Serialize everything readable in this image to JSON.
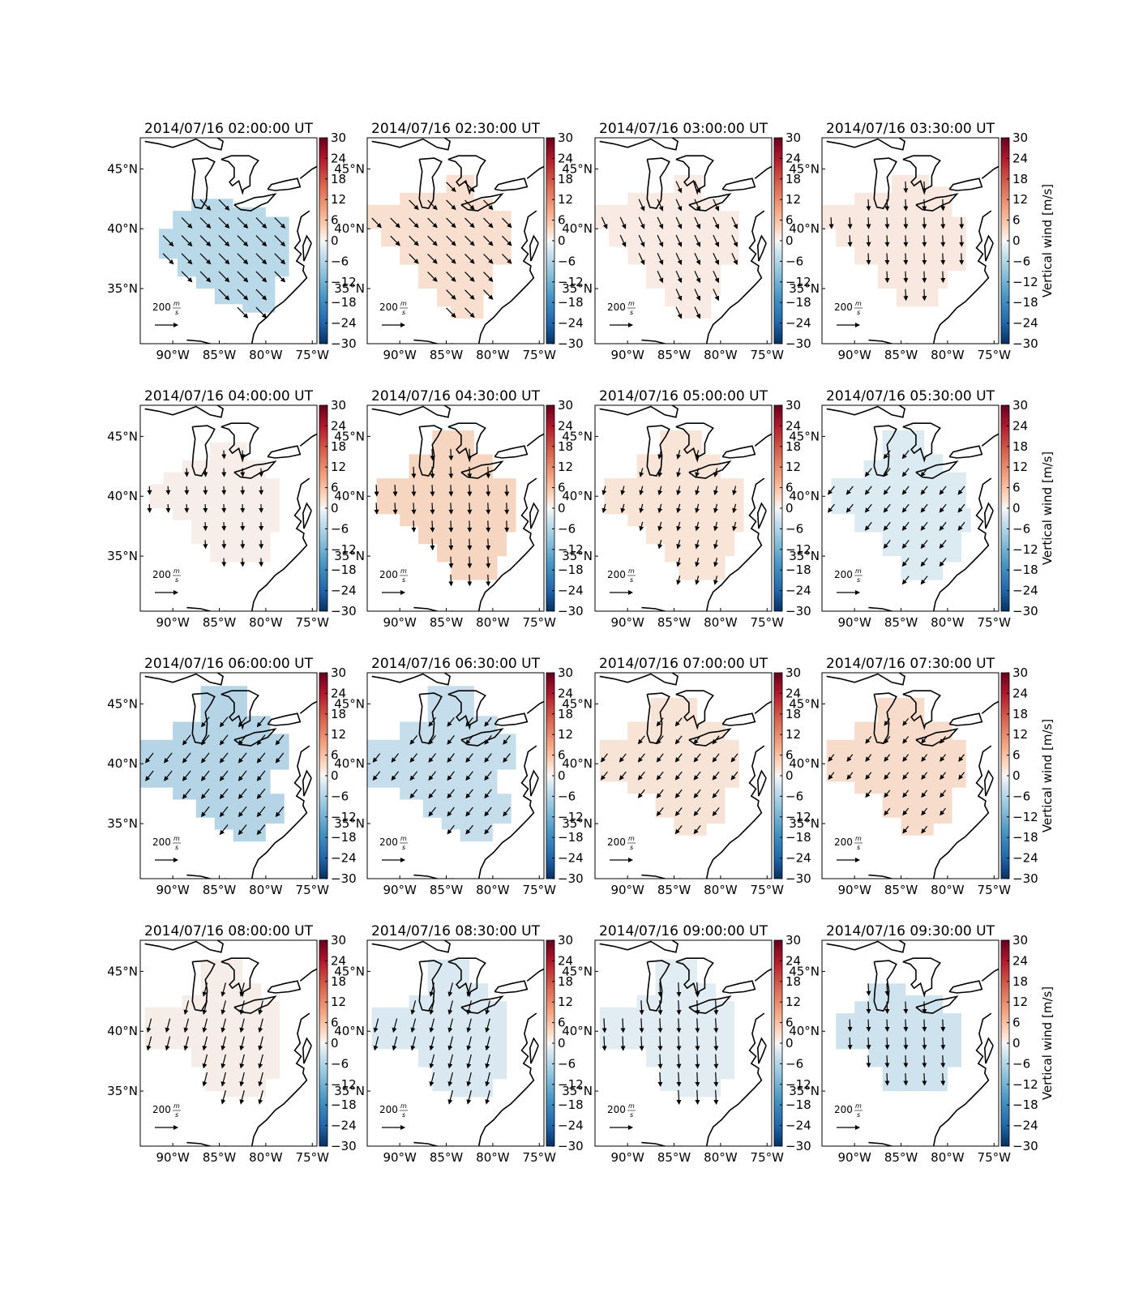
{
  "figure": {
    "colorbar_label": "Vertical wind [m/s]",
    "colorbar_ticks": [
      "30",
      "24",
      "18",
      "12",
      "6",
      "0",
      "−6",
      "−12",
      "−18",
      "−24",
      "−30"
    ],
    "lon_labels": [
      "90°W",
      "85°W",
      "80°W",
      "75°W"
    ],
    "lat_labels": [
      "45°N",
      "40°N",
      "35°N"
    ],
    "reference_arrow_value": "200",
    "reference_arrow_unit_num": "m",
    "reference_arrow_unit_den": "s",
    "colormap": {
      "negative": "#053061",
      "zero": "#f7f7f7",
      "positive": "#67001f"
    }
  },
  "panels": [
    {
      "title": "2014/07/16 02:00:00 UT",
      "fill": "#b9d8e8",
      "region": "r1",
      "wind_dir": "se",
      "wind_len": 1.0
    },
    {
      "title": "2014/07/16 02:30:00 UT",
      "fill": "#f9dfd0",
      "region": "r2",
      "wind_dir": "se",
      "wind_len": 0.9
    },
    {
      "title": "2014/07/16 03:00:00 UT",
      "fill": "#f9ebe4",
      "region": "r2",
      "wind_dir": "sse",
      "wind_len": 0.85
    },
    {
      "title": "2014/07/16 03:30:00 UT",
      "fill": "#f9e8df",
      "region": "r3",
      "wind_dir": "s",
      "wind_len": 0.75
    },
    {
      "title": "2014/07/16 04:00:00 UT",
      "fill": "#f7eeea",
      "region": "r4",
      "wind_dir": "s",
      "wind_len": 0.55
    },
    {
      "title": "2014/07/16 04:30:00 UT",
      "fill": "#f7d6c1",
      "region": "r5",
      "wind_dir": "s",
      "wind_len": 0.75
    },
    {
      "title": "2014/07/16 05:00:00 UT",
      "fill": "#f9e4d8",
      "region": "r5",
      "wind_dir": "ssw",
      "wind_len": 0.6
    },
    {
      "title": "2014/07/16 05:30:00 UT",
      "fill": "#dceaf2",
      "region": "r6",
      "wind_dir": "sw",
      "wind_len": 0.7
    },
    {
      "title": "2014/07/16 06:00:00 UT",
      "fill": "#b5d5e6",
      "region": "r7",
      "wind_dir": "sw",
      "wind_len": 0.85
    },
    {
      "title": "2014/07/16 06:30:00 UT",
      "fill": "#c6deeb",
      "region": "r7",
      "wind_dir": "sw",
      "wind_len": 0.75
    },
    {
      "title": "2014/07/16 07:00:00 UT",
      "fill": "#f8e3d7",
      "region": "r8",
      "wind_dir": "sw",
      "wind_len": 0.7
    },
    {
      "title": "2014/07/16 07:30:00 UT",
      "fill": "#f8dccb",
      "region": "r8",
      "wind_dir": "sw",
      "wind_len": 0.6
    },
    {
      "title": "2014/07/16 08:00:00 UT",
      "fill": "#f6ece8",
      "region": "r9",
      "wind_dir": "ssw",
      "wind_len": 0.95
    },
    {
      "title": "2014/07/16 08:30:00 UT",
      "fill": "#d9e8f1",
      "region": "r9",
      "wind_dir": "ssw",
      "wind_len": 0.95
    },
    {
      "title": "2014/07/16 09:00:00 UT",
      "fill": "#e1ecf3",
      "region": "r9",
      "wind_dir": "s",
      "wind_len": 0.95
    },
    {
      "title": "2014/07/16 09:30:00 UT",
      "fill": "#cfe3ee",
      "region": "r10",
      "wind_dir": "s",
      "wind_len": 0.8
    }
  ]
}
